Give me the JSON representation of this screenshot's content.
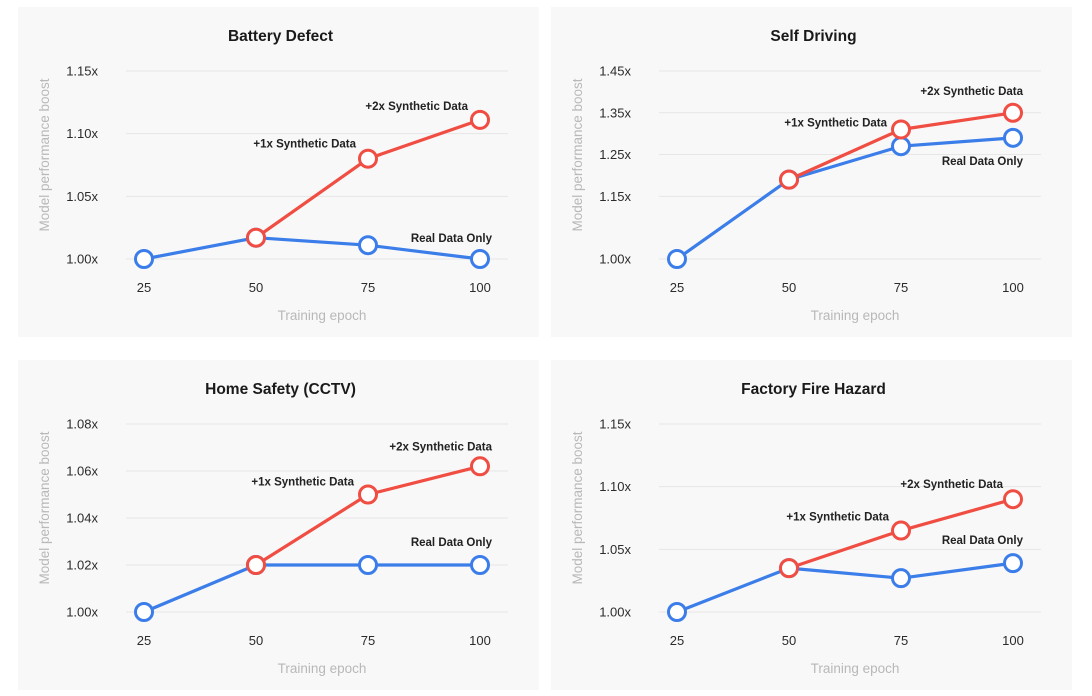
{
  "chart_data": [
    {
      "type": "line",
      "title": "Battery Defect",
      "xlabel": "Training epoch",
      "ylabel": "Model performance boost",
      "categories": [
        "25",
        "50",
        "75",
        "100"
      ],
      "yticks": [
        "1.00x",
        "1.05x",
        "1.10x",
        "1.15x"
      ],
      "ylim": [
        1.0,
        1.15
      ],
      "grid": true,
      "series": [
        {
          "key": "real",
          "values": [
            1.0,
            1.017,
            1.011,
            1.0
          ],
          "color": "#3b7de9"
        },
        {
          "key": "syn",
          "values": [
            null,
            1.017,
            1.08,
            1.111
          ],
          "color": "#f04d43"
        }
      ],
      "annotations": [
        {
          "text": "+2x Synthetic Data",
          "series": "syn",
          "index": 3
        },
        {
          "text": "+1x Synthetic Data",
          "series": "syn",
          "index": 2
        },
        {
          "text": "Real Data Only",
          "series": "real",
          "index": 3
        }
      ]
    },
    {
      "type": "line",
      "title": "Self Driving",
      "xlabel": "Training epoch",
      "ylabel": "Model performance boost",
      "categories": [
        "25",
        "50",
        "75",
        "100"
      ],
      "yticks": [
        "1.00x",
        "1.15x",
        "1.25x",
        "1.35x",
        "1.45x"
      ],
      "ylim": [
        1.0,
        1.45
      ],
      "grid": true,
      "series": [
        {
          "key": "real",
          "values": [
            1.0,
            1.19,
            1.27,
            1.29
          ],
          "color": "#3b7de9"
        },
        {
          "key": "syn",
          "values": [
            null,
            1.19,
            1.31,
            1.35
          ],
          "color": "#f04d43"
        }
      ],
      "annotations": [
        {
          "text": "+2x Synthetic Data",
          "series": "syn",
          "index": 3
        },
        {
          "text": "+1x Synthetic Data",
          "series": "syn",
          "index": 2
        },
        {
          "text": "Real Data Only",
          "series": "real",
          "index": 3
        }
      ]
    },
    {
      "type": "line",
      "title": "Home Safety (CCTV)",
      "xlabel": "Training epoch",
      "ylabel": "Model performance boost",
      "categories": [
        "25",
        "50",
        "75",
        "100"
      ],
      "yticks": [
        "1.00x",
        "1.02x",
        "1.04x",
        "1.06x",
        "1.08x"
      ],
      "ylim": [
        1.0,
        1.08
      ],
      "grid": true,
      "series": [
        {
          "key": "real",
          "values": [
            1.0,
            1.02,
            1.02,
            1.02
          ],
          "color": "#3b7de9"
        },
        {
          "key": "syn",
          "values": [
            null,
            1.02,
            1.05,
            1.062
          ],
          "color": "#f04d43"
        }
      ],
      "annotations": [
        {
          "text": "+2x Synthetic Data",
          "series": "syn",
          "index": 3
        },
        {
          "text": "+1x Synthetic Data",
          "series": "syn",
          "index": 2
        },
        {
          "text": "Real Data Only",
          "series": "real",
          "index": 3
        }
      ]
    },
    {
      "type": "line",
      "title": "Factory Fire Hazard",
      "xlabel": "Training epoch",
      "ylabel": "Model performance boost",
      "categories": [
        "25",
        "50",
        "75",
        "100"
      ],
      "yticks": [
        "1.00x",
        "1.05x",
        "1.10x",
        "1.15x"
      ],
      "ylim": [
        1.0,
        1.15
      ],
      "grid": true,
      "series": [
        {
          "key": "real",
          "values": [
            1.0,
            1.035,
            1.027,
            1.039
          ],
          "color": "#3b7de9"
        },
        {
          "key": "syn",
          "values": [
            null,
            1.035,
            1.065,
            1.09
          ],
          "color": "#f04d43"
        }
      ],
      "annotations": [
        {
          "text": "+2x Synthetic Data",
          "series": "syn",
          "index": 3
        },
        {
          "text": "+1x Synthetic Data",
          "series": "syn",
          "index": 2
        },
        {
          "text": "Real Data Only",
          "series": "real",
          "index": 3
        }
      ]
    }
  ]
}
